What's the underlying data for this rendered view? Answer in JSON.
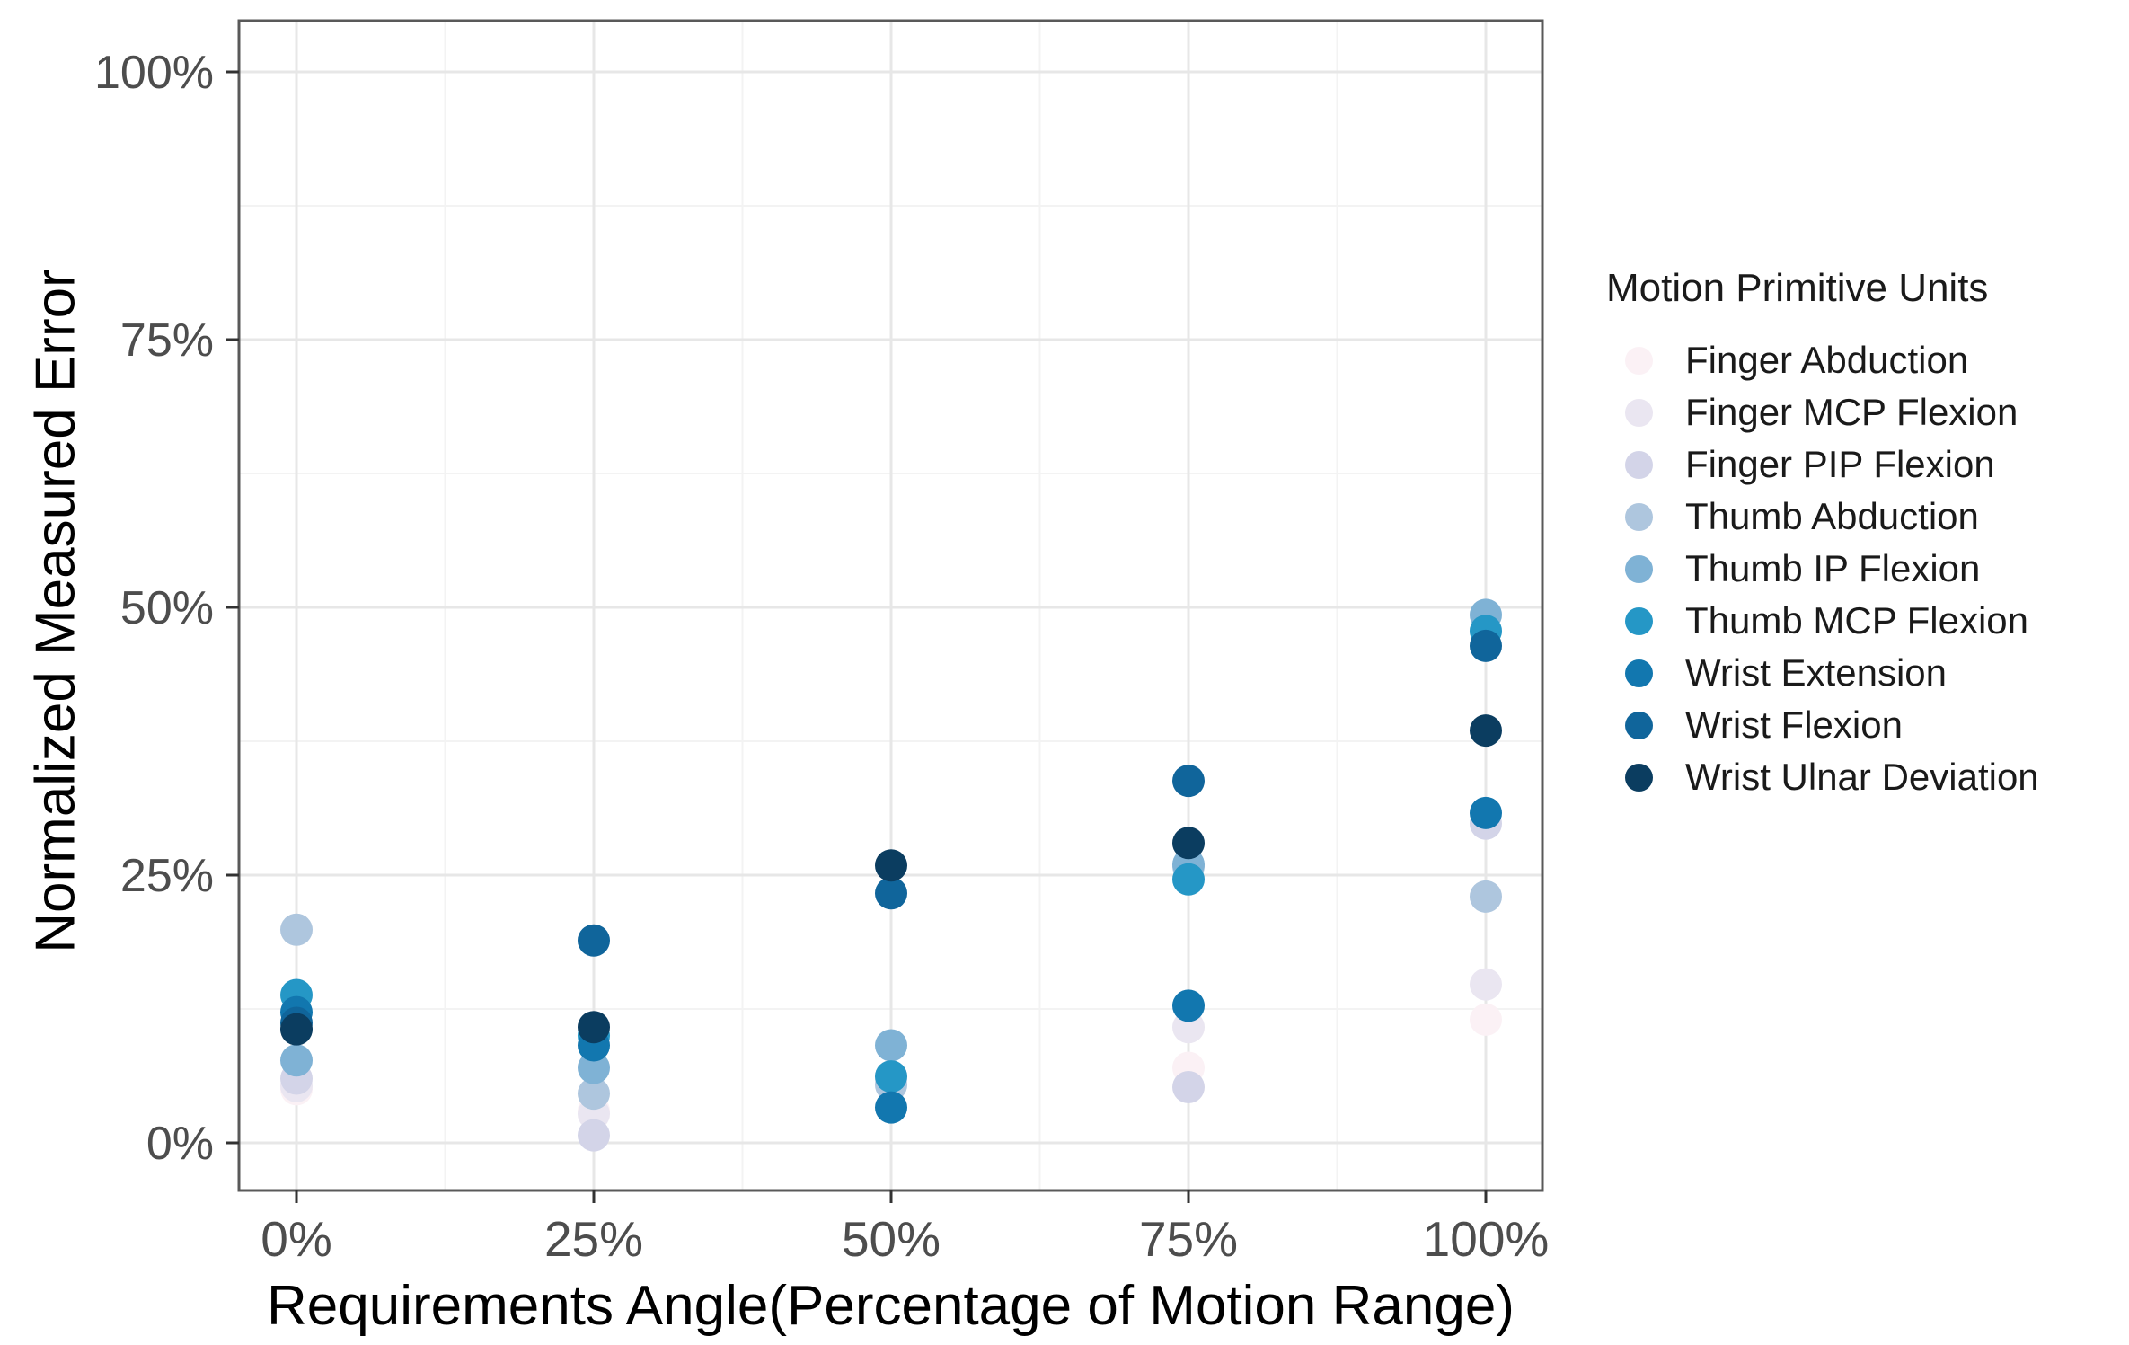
{
  "chart_data": {
    "type": "scatter",
    "title": "",
    "xlabel": "Requirements Angle(Percentage of Motion Range)",
    "ylabel": "Normalized Measured Error",
    "legend_title": "Motion Primitive Units",
    "legend_position": "right",
    "grid": "major+minor",
    "x_unit": "percent of motion range",
    "y_unit": "percent error",
    "categories": [
      "0%",
      "25%",
      "50%",
      "75%",
      "100%"
    ],
    "x_values": [
      0,
      25,
      50,
      75,
      100
    ],
    "y_tick_labels": [
      "0%",
      "25%",
      "50%",
      "75%",
      "100%"
    ],
    "y_ticks": [
      0,
      25,
      50,
      75,
      100
    ],
    "ylim": [
      0,
      100
    ],
    "series": [
      {
        "name": "Finger Abduction",
        "color": "#fbf1f5",
        "values": [
          5.0,
          3.0,
          5.5,
          7.0,
          11.5
        ]
      },
      {
        "name": "Finger MCP Flexion",
        "color": "#eae6f1",
        "values": [
          5.3,
          2.7,
          5.8,
          10.8,
          14.8
        ]
      },
      {
        "name": "Finger PIP Flexion",
        "color": "#d3d4e8",
        "values": [
          6.0,
          0.7,
          6.2,
          5.2,
          29.8
        ]
      },
      {
        "name": "Thumb Abduction",
        "color": "#aec6de",
        "values": [
          19.9,
          4.6,
          5.4,
          25.8,
          23.0
        ]
      },
      {
        "name": "Thumb IP Flexion",
        "color": "#7fb2d5",
        "values": [
          7.7,
          7.0,
          9.1,
          26.0,
          49.3
        ]
      },
      {
        "name": "Thumb MCP Flexion",
        "color": "#2597c6",
        "values": [
          13.8,
          10.0,
          6.2,
          24.6,
          47.8
        ]
      },
      {
        "name": "Wrist Extension",
        "color": "#1277af",
        "values": [
          12.2,
          9.1,
          3.3,
          12.8,
          30.8
        ]
      },
      {
        "name": "Wrist Flexion",
        "color": "#10659b",
        "values": [
          11.2,
          18.9,
          23.3,
          33.8,
          46.4
        ]
      },
      {
        "name": "Wrist Ulnar Deviation",
        "color": "#0b3d60",
        "values": [
          10.6,
          10.8,
          25.9,
          28.0,
          38.5
        ]
      }
    ]
  }
}
